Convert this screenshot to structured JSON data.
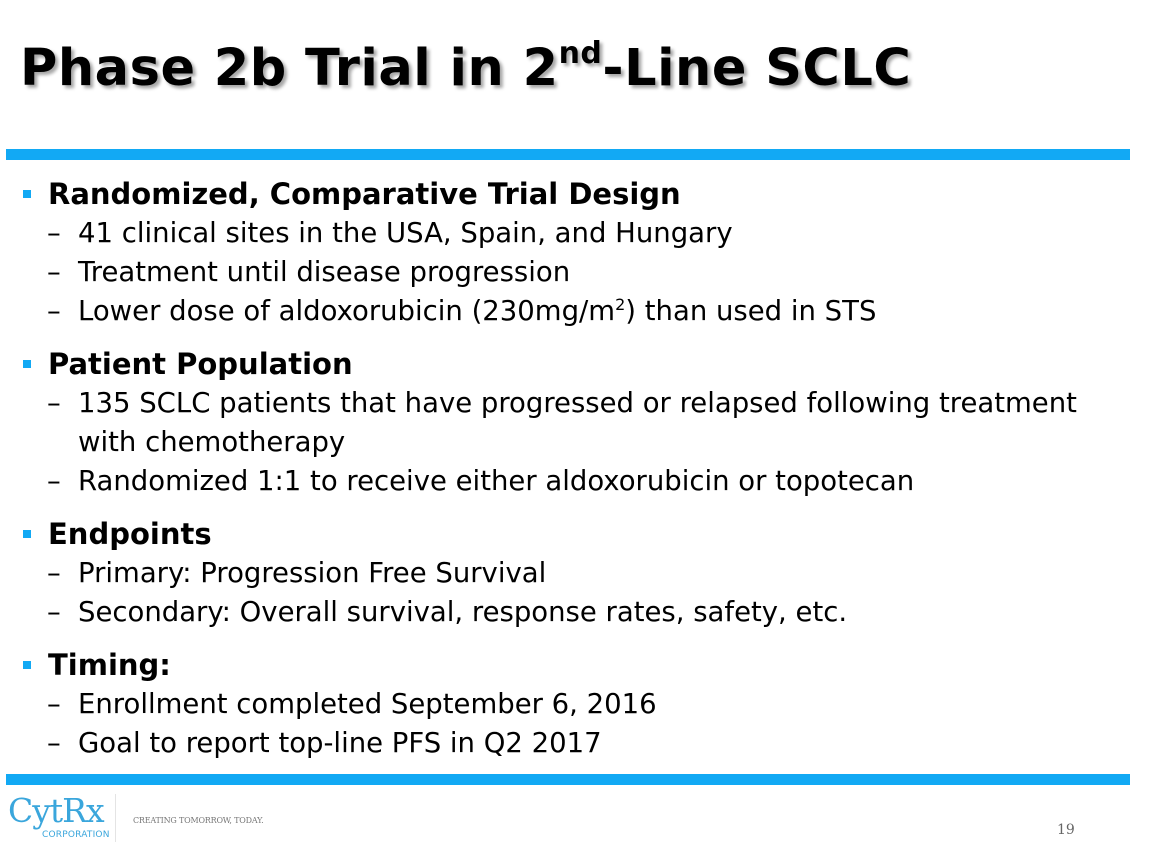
{
  "slide": {
    "title": {
      "pre": "Phase 2b Trial in 2",
      "sup": "nd",
      "post": "-Line SCLC"
    },
    "accent_color": "#12a9f4",
    "sections": [
      {
        "heading": "Randomized, Comparative Trial Design",
        "items": [
          {
            "text": "41 clinical sites in the USA, Spain, and Hungary"
          },
          {
            "text": "Treatment until disease progression"
          },
          {
            "text": "Lower dose of aldoxorubicin (230mg/m",
            "sup": "2",
            "after": ") than used in STS"
          }
        ]
      },
      {
        "heading": "Patient Population",
        "items": [
          {
            "text": "135 SCLC patients that have progressed or relapsed following treatment with chemotherapy"
          },
          {
            "text": "Randomized 1:1 to receive either aldoxorubicin or topotecan"
          }
        ]
      },
      {
        "heading": "Endpoints",
        "items": [
          {
            "text": "Primary: Progression Free Survival"
          },
          {
            "text": "Secondary: Overall survival, response rates, safety, etc."
          }
        ]
      },
      {
        "heading": "Timing:",
        "items": [
          {
            "text": "Enrollment completed September 6, 2016"
          },
          {
            "text": "Goal to report top-line PFS in Q2 2017"
          }
        ]
      }
    ],
    "dash": "–"
  },
  "footer": {
    "logo": "CytRx",
    "logo_sub": "CORPORATION",
    "tagline": "CREATING TOMORROW, TODAY.",
    "page_number": "19"
  }
}
